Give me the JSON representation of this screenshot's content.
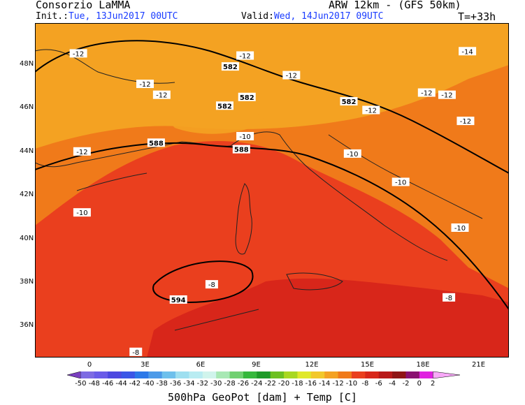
{
  "header": {
    "org": "Consorzio LaMMA",
    "model": "ARW 12km - (GFS 50km)",
    "init_label": "Init.:",
    "init_value": "Tue, 13Jun2017 00UTC",
    "valid_label": "Valid:",
    "valid_value": "Wed, 14Jun2017 09UTC",
    "lead": "T=+33h"
  },
  "axes": {
    "lat_labels": [
      "48N",
      "46N",
      "44N",
      "42N",
      "40N",
      "38N",
      "36N"
    ],
    "lon_labels": [
      "0",
      "3E",
      "6E",
      "9E",
      "12E",
      "15E",
      "18E",
      "21E"
    ]
  },
  "colorbar": {
    "ticks": [
      "-50",
      "-48",
      "-46",
      "-44",
      "-42",
      "-40",
      "-38",
      "-36",
      "-34",
      "-32",
      "-30",
      "-28",
      "-26",
      "-24",
      "-22",
      "-20",
      "-18",
      "-16",
      "-14",
      "-12",
      "-10",
      "-8",
      "-6",
      "-4",
      "-2",
      "0",
      "2"
    ],
    "colors": [
      "#7a3fbf",
      "#7d6be3",
      "#6a5be8",
      "#4d48e0",
      "#3b56e6",
      "#2b78e8",
      "#4c9ae8",
      "#6ec0ec",
      "#9edff0",
      "#b9ecf2",
      "#d0f4ec",
      "#a8e8b4",
      "#70d070",
      "#36b83c",
      "#1e9a28",
      "#6cc020",
      "#a8d820",
      "#e0e82a",
      "#f2c82a",
      "#f4a222",
      "#f07a1a",
      "#ea3f1e",
      "#d8261a",
      "#b81818",
      "#901414",
      "#8a1070",
      "#e020e0",
      "#f8a8f8"
    ],
    "title": "500hPa GeoPot [dam] + Temp [C]"
  },
  "map_labels": {
    "temp": [
      {
        "text": "-12",
        "lon": -0.6,
        "lat": 48.5
      },
      {
        "text": "-12",
        "lon": 8.4,
        "lat": 48.4
      },
      {
        "text": "-12",
        "lon": 3.0,
        "lat": 47.1
      },
      {
        "text": "-12",
        "lon": 3.9,
        "lat": 46.6
      },
      {
        "text": "-12",
        "lon": 10.9,
        "lat": 47.5
      },
      {
        "text": "-12",
        "lon": 15.2,
        "lat": 45.9
      },
      {
        "text": "-12",
        "lon": 19.3,
        "lat": 46.6
      },
      {
        "text": "-12",
        "lon": 20.3,
        "lat": 45.4
      },
      {
        "text": "-14",
        "lon": 20.4,
        "lat": 48.6
      },
      {
        "text": "-12",
        "lon": 18.2,
        "lat": 46.7
      },
      {
        "text": "-12",
        "lon": -0.4,
        "lat": 44.0
      },
      {
        "text": "-10",
        "lon": 8.4,
        "lat": 44.7
      },
      {
        "text": "-10",
        "lon": 14.2,
        "lat": 43.9
      },
      {
        "text": "-10",
        "lon": 16.8,
        "lat": 42.6
      },
      {
        "text": "-10",
        "lon": -0.4,
        "lat": 41.2
      },
      {
        "text": "-10",
        "lon": 20.0,
        "lat": 40.5
      },
      {
        "text": "-8",
        "lon": 6.6,
        "lat": 37.9
      },
      {
        "text": "-8",
        "lon": 19.4,
        "lat": 37.3
      },
      {
        "text": "-8",
        "lon": 2.5,
        "lat": 34.8
      }
    ],
    "geopot": [
      {
        "text": "582",
        "lon": 7.6,
        "lat": 47.9
      },
      {
        "text": "582",
        "lon": 8.5,
        "lat": 46.5
      },
      {
        "text": "582",
        "lon": 7.3,
        "lat": 46.1
      },
      {
        "text": "582",
        "lon": 14.0,
        "lat": 46.3
      },
      {
        "text": "588",
        "lon": 3.6,
        "lat": 44.4
      },
      {
        "text": "588",
        "lon": 8.2,
        "lat": 44.1
      },
      {
        "text": "594",
        "lon": 4.8,
        "lat": 37.2
      }
    ]
  }
}
